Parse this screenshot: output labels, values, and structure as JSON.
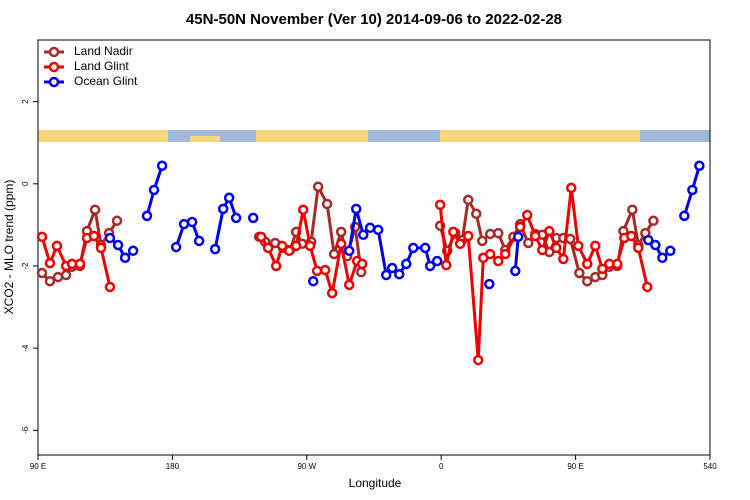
{
  "chart_data": {
    "type": "line",
    "title": "45N-50N November (Ver 10)   2014-09-06 to 2022-02-28",
    "x_label": "Longitude",
    "y_label": "XCO2 - MLO trend (ppm)",
    "xlim": [
      90,
      540
    ],
    "xticks": [
      {
        "value": 90,
        "label": "90 E"
      },
      180,
      {
        "value": 270,
        "label": "90 W"
      },
      {
        "value": 360,
        "label": "0"
      },
      {
        "value": 450,
        "label": "90 E"
      },
      540
    ],
    "ylim": [
      -6.6,
      3.5
    ],
    "yticks": [
      -6,
      -4,
      -2,
      0,
      2
    ],
    "legend": "upper left",
    "series": [
      {
        "name": "Land Nadir",
        "color": "#a52a2a",
        "x": [
          92.7,
          98.0,
          103.4,
          108.8,
          112.8,
          118.1,
          122.8,
          128.2,
          132.2,
          137.6,
          142.9,
          null,
          238.1,
          242.1,
          248.8,
          254.2,
          258.8,
          262.9,
          266.9,
          272.9,
          277.6,
          283.6,
          288.3,
          293.0,
          297.0,
          302.4,
          306.4,
          null,
          359.3,
          364.0,
          369.4,
          374.1,
          378.1,
          383.5,
          387.5,
          392.8,
          398.2,
          402.9,
          408.3,
          412.9,
          418.3,
          423.0,
          427.7,
          432.4,
          437.1,
          441.8,
          446.4,
          452.5,
          457.8,
          463.2,
          467.9,
          472.6,
          477.9,
          482.0,
          488.0,
          492.0,
          496.7,
          502.1
        ],
        "values": [
          -2.17,
          -2.37,
          -2.27,
          -2.22,
          -2.02,
          -2.0,
          -1.15,
          -0.63,
          -1.49,
          -1.2,
          -0.9,
          null,
          -1.29,
          -1.41,
          -1.44,
          -1.56,
          -1.61,
          -1.17,
          -1.46,
          -1.41,
          -0.07,
          -0.49,
          -1.71,
          -1.17,
          -1.76,
          -1.05,
          -2.15,
          null,
          -1.02,
          -1.63,
          -1.2,
          -1.37,
          -0.39,
          -0.73,
          -1.39,
          -1.22,
          -1.2,
          -1.61,
          -1.29,
          -0.98,
          -1.44,
          -1.22,
          -1.24,
          -1.66,
          -1.32,
          -1.32,
          -1.34,
          -2.17,
          -2.37,
          -2.27,
          -2.22,
          -2.02,
          -2.0,
          -1.15,
          -0.63,
          -1.49,
          -1.2,
          -0.9
        ]
      },
      {
        "name": "Land Glint",
        "color": "#ee0000",
        "x": [
          92.7,
          98.0,
          102.7,
          108.8,
          112.8,
          118.1,
          122.8,
          127.5,
          132.2,
          138.2,
          null,
          239.4,
          244.1,
          249.5,
          253.5,
          258.2,
          262.9,
          267.6,
          272.2,
          276.9,
          282.3,
          287.0,
          293.0,
          298.4,
          303.7,
          307.1,
          null,
          359.3,
          363.4,
          368.1,
          372.7,
          378.1,
          384.8,
          388.2,
          392.8,
          398.2,
          402.9,
          412.9,
          417.6,
          423.0,
          427.7,
          432.4,
          437.1,
          441.8,
          447.1,
          451.8,
          457.8,
          463.2,
          467.9,
          472.6,
          477.9,
          482.6,
          487.3,
          492.0,
          498.0
        ],
        "values": [
          -1.29,
          -1.93,
          -1.51,
          -2.0,
          -1.95,
          -1.95,
          -1.32,
          -1.27,
          -1.56,
          -2.51,
          null,
          -1.29,
          -1.56,
          -2.0,
          -1.51,
          -1.63,
          -1.51,
          -0.63,
          -1.51,
          -2.12,
          -2.1,
          -2.66,
          -1.46,
          -2.46,
          -1.88,
          -1.95,
          null,
          -0.51,
          -1.98,
          -1.17,
          -1.46,
          -1.27,
          -4.29,
          -1.8,
          -1.71,
          -1.88,
          -1.71,
          -1.05,
          -0.76,
          -1.27,
          -1.61,
          -1.15,
          -1.56,
          -1.83,
          -0.1,
          -1.51,
          -1.95,
          -1.51,
          -2.07,
          -1.95,
          -1.95,
          -1.32,
          -1.27,
          -1.56,
          -2.51
        ]
      },
      {
        "name": "Ocean Glint",
        "color": "#0000ee",
        "x": [
          138.2,
          143.6,
          148.3,
          153.7,
          null,
          163.0,
          167.7,
          173.1,
          null,
          182.5,
          187.8,
          193.2,
          197.9,
          null,
          208.6,
          214.0,
          218.0,
          222.7,
          null,
          234.1,
          null,
          274.3,
          null,
          298.4,
          303.1,
          307.8,
          312.4,
          317.8,
          323.2,
          327.2,
          331.9,
          336.6,
          341.3,
          349.3,
          352.6,
          357.3,
          null,
          392.2,
          null,
          409.6,
          411.6,
          null,
          498.7,
          503.4,
          508.1,
          513.4,
          null,
          522.8,
          528.2,
          532.9
        ],
        "values": [
          -1.32,
          -1.49,
          -1.8,
          -1.63,
          null,
          -0.78,
          -0.15,
          0.44,
          null,
          -1.54,
          -0.98,
          -0.93,
          -1.39,
          null,
          -1.59,
          -0.61,
          -0.34,
          -0.83,
          null,
          -0.83,
          null,
          -2.37,
          null,
          -1.63,
          -0.61,
          -1.24,
          -1.07,
          -1.12,
          -2.22,
          -2.05,
          -2.2,
          -1.95,
          -1.56,
          -1.56,
          -2.0,
          -1.88,
          null,
          -2.44,
          null,
          -2.12,
          -1.29,
          null,
          -1.37,
          -1.49,
          -1.8,
          -1.63,
          null,
          -0.78,
          -0.15,
          0.44
        ]
      }
    ]
  }
}
